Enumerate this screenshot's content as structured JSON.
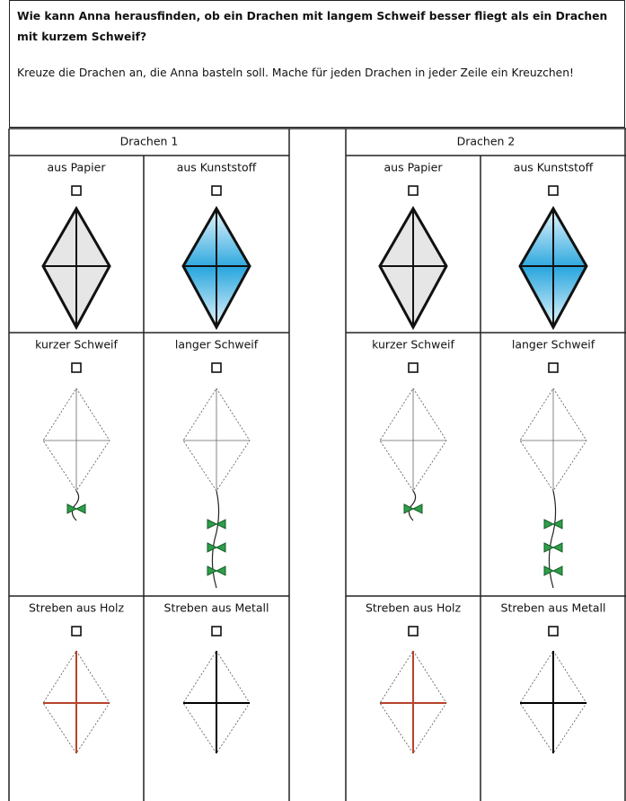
{
  "question": "Wie kann Anna herausfinden, ob ein Drachen mit langem Schweif besser fliegt als ein Drachen mit kurzem Schweif?",
  "instruction": "Kreuze die Drachen an, die Anna basteln soll. Mache für jeden Drachen in jeder Zeile ein Kreuzchen!",
  "kites": [
    {
      "title": "Drachen 1",
      "rows": [
        [
          "aus Papier",
          "aus Kunststoff"
        ],
        [
          "kurzer Schweif",
          "langer Schweif"
        ],
        [
          "Streben aus Holz",
          "Streben aus Metall"
        ]
      ]
    },
    {
      "title": "Drachen 2",
      "rows": [
        [
          "aus Papier",
          "aus Kunststoff"
        ],
        [
          "kurzer Schweif",
          "langer Schweif"
        ],
        [
          "Streben aus Holz",
          "Streben aus Metall"
        ]
      ]
    }
  ]
}
